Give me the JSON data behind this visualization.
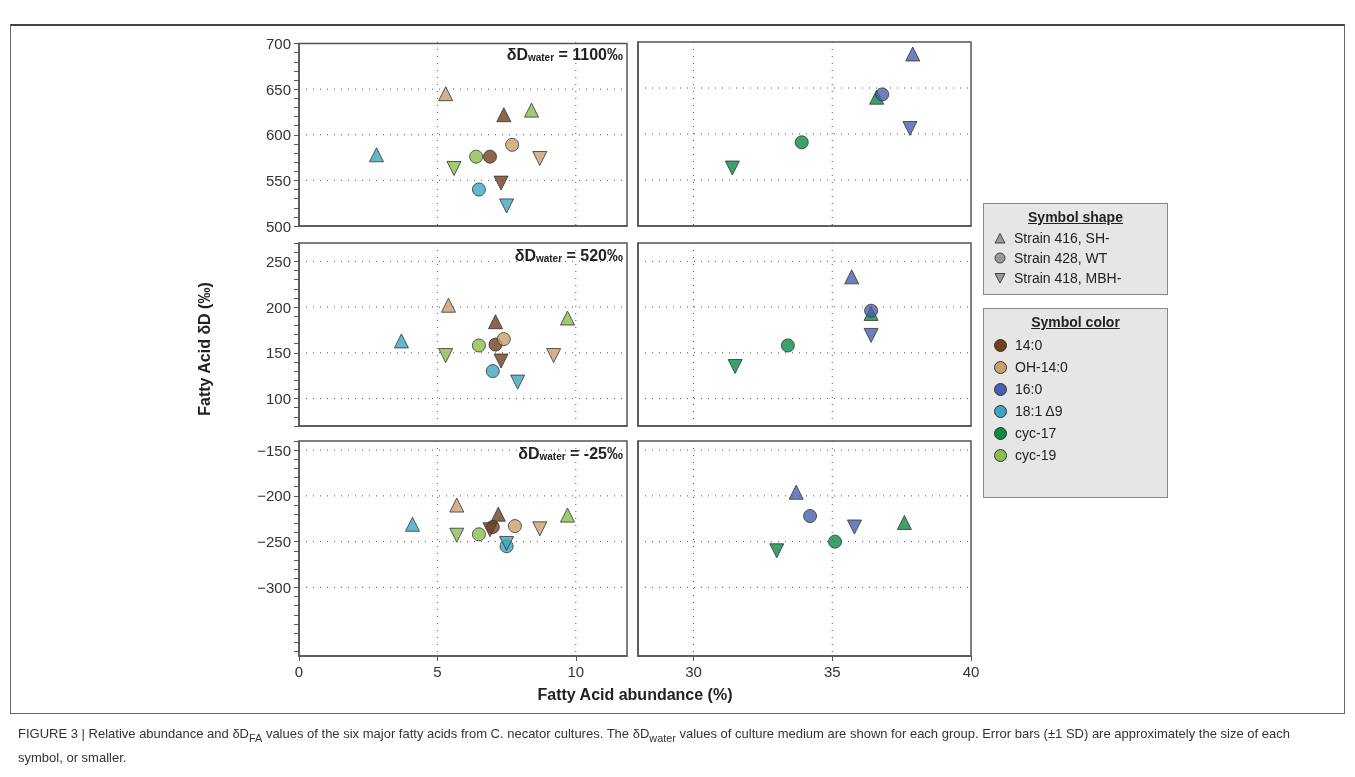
{
  "chart_data": [
    {
      "type": "scatter",
      "xlim": [
        0,
        11.85
      ],
      "xticks": [
        0,
        5,
        10
      ],
      "ylim": [
        500,
        700
      ],
      "yticks": [
        500,
        550,
        600,
        650,
        700
      ],
      "grid": true,
      "tick_labels": "y",
      "legend": false,
      "annotations": [
        "δD$_{water}$ = 1100‰"
      ],
      "series": [
        {
          "marker": "triangle",
          "x": [
            2.8,
            5.3,
            7.4,
            8.4
          ],
          "values": [
            578,
            645,
            622,
            627
          ],
          "colors": [
            "#3ea5bf",
            "#c9a06f",
            "#6e4121",
            "#8cbd50"
          ]
        },
        {
          "marker": "circle",
          "x": [
            6.4,
            6.9,
            6.5,
            7.7
          ],
          "values": [
            576,
            576,
            540,
            589
          ],
          "colors": [
            "#8cbd50",
            "#6e4121",
            "#3ea5bf",
            "#c9a06f"
          ]
        },
        {
          "marker": "triangle-down",
          "x": [
            5.6,
            7.3,
            7.5,
            8.7
          ],
          "values": [
            563,
            547,
            522,
            574
          ],
          "colors": [
            "#8cbd50",
            "#6e4121",
            "#3ea5bf",
            "#c9a06f"
          ]
        }
      ]
    },
    {
      "type": "scatter",
      "xlim": [
        28,
        40
      ],
      "xticks": [
        30,
        35,
        40
      ],
      "ylim": [
        500,
        700
      ],
      "yticks": [
        500,
        550,
        600,
        650,
        700
      ],
      "grid": true,
      "tick_labels": false,
      "legend": false,
      "series": [
        {
          "marker": "triangle",
          "x": [
            37.9,
            36.6
          ],
          "values": [
            687,
            640
          ],
          "colors": [
            "#4a5fad",
            "#0c8a46"
          ]
        },
        {
          "marker": "circle",
          "x": [
            36.8,
            33.9
          ],
          "values": [
            643,
            591
          ],
          "colors": [
            "#4a5fad",
            "#0c8a46"
          ]
        },
        {
          "marker": "triangle-down",
          "x": [
            37.8,
            31.4
          ],
          "values": [
            606,
            563
          ],
          "colors": [
            "#4a5fad",
            "#0c8a46"
          ]
        }
      ]
    },
    {
      "type": "scatter",
      "xlim": [
        0,
        11.85
      ],
      "xticks": [
        0,
        5,
        10
      ],
      "ylim": [
        70,
        270
      ],
      "yticks": [
        100,
        150,
        200,
        250
      ],
      "grid": true,
      "tick_labels": "y",
      "legend": false,
      "ylabel": "Fatty Acid δD (‰)",
      "annotations": [
        "δD$_{water}$ = 520‰"
      ],
      "series": [
        {
          "marker": "triangle",
          "x": [
            5.4,
            3.7,
            7.1,
            9.7
          ],
          "values": [
            202,
            163,
            184,
            188
          ],
          "colors": [
            "#c9a06f",
            "#3ea5bf",
            "#6e4121",
            "#8cbd50"
          ]
        },
        {
          "marker": "circle",
          "x": [
            6.5,
            7.1,
            7.4,
            7.0
          ],
          "values": [
            158,
            159,
            165,
            130
          ],
          "colors": [
            "#8cbd50",
            "#6e4121",
            "#c9a06f",
            "#3ea5bf"
          ]
        },
        {
          "marker": "triangle-down",
          "x": [
            5.3,
            7.3,
            7.9,
            9.2
          ],
          "values": [
            147,
            141,
            118,
            147
          ],
          "colors": [
            "#8cbd50",
            "#6e4121",
            "#3ea5bf",
            "#c9a06f"
          ]
        }
      ]
    },
    {
      "type": "scatter",
      "xlim": [
        28,
        40
      ],
      "xticks": [
        30,
        35,
        40
      ],
      "ylim": [
        70,
        270
      ],
      "yticks": [
        100,
        150,
        200,
        250
      ],
      "grid": true,
      "tick_labels": false,
      "legend": "right",
      "legend_title": "Symbol shape",
      "series": [
        {
          "name": "Strain 416, SH-",
          "marker": "triangle",
          "x": [
            35.7,
            36.4
          ],
          "values": [
            233,
            193
          ],
          "colors": [
            "#4a5fad",
            "#0c8a46"
          ]
        },
        {
          "name": "Strain 428, WT",
          "marker": "circle",
          "x": [
            36.4,
            33.4
          ],
          "values": [
            196,
            158
          ],
          "colors": [
            "#4a5fad",
            "#0c8a46"
          ]
        },
        {
          "name": "Strain 418, MBH-",
          "marker": "triangle-down",
          "x": [
            36.4,
            31.5
          ],
          "values": [
            169,
            135
          ],
          "colors": [
            "#4a5fad",
            "#0c8a46"
          ]
        }
      ]
    },
    {
      "type": "scatter",
      "xlim": [
        0,
        11.85
      ],
      "xticks": [
        0,
        5,
        10
      ],
      "ylim": [
        -375,
        -140
      ],
      "yticks": [
        -300,
        -250,
        -200,
        -150
      ],
      "grid": true,
      "legend": false,
      "xlabel": "Fatty Acid abundance (%)",
      "annotations": [
        "δD$_{water}$ = -25‰",
        "FIGURE 3 | Relative abundance and δD$_{FA}$ values of the six major fatty acids from C. necator cultures. The δD$_{water}$ values of culture medium are shown for each group. Error bars (±1 SD) are approximately the size of each symbol, or smaller."
      ],
      "series": [
        {
          "marker": "triangle",
          "x": [
            4.1,
            5.7,
            7.2,
            9.7
          ],
          "values": [
            -231,
            -210,
            -220,
            -221
          ],
          "colors": [
            "#3ea5bf",
            "#c9a06f",
            "#6e4121",
            "#8cbd50"
          ]
        },
        {
          "marker": "circle",
          "x": [
            7.0,
            7.8,
            6.5,
            7.5
          ],
          "values": [
            -234,
            -233,
            -242,
            -255
          ],
          "colors": [
            "#6e4121",
            "#c9a06f",
            "#8cbd50",
            "#3ea5bf"
          ]
        },
        {
          "marker": "triangle-down",
          "x": [
            5.7,
            6.9,
            7.5,
            8.7
          ],
          "values": [
            -243,
            -237,
            -252,
            -236
          ],
          "colors": [
            "#8cbd50",
            "#6e4121",
            "#3ea5bf",
            "#c9a06f"
          ]
        }
      ]
    },
    {
      "type": "scatter",
      "xlim": [
        28,
        40
      ],
      "xticks": [
        30,
        35,
        40
      ],
      "ylim": [
        -375,
        -140
      ],
      "yticks": [
        -300,
        -250,
        -200,
        -150
      ],
      "grid": true,
      "tick_labels": "x",
      "legend": false,
      "series": [
        {
          "marker": "triangle",
          "x": [
            33.7,
            37.6
          ],
          "values": [
            -196,
            -229
          ],
          "colors": [
            "#4a5fad",
            "#0c8a46"
          ]
        },
        {
          "marker": "circle",
          "x": [
            34.2,
            35.1
          ],
          "values": [
            -222,
            -250
          ],
          "colors": [
            "#4a5fad",
            "#0c8a46"
          ]
        },
        {
          "marker": "triangle-down",
          "x": [
            35.8,
            33.0
          ],
          "values": [
            -234,
            -260
          ],
          "colors": [
            "#4a5fad",
            "#0c8a46"
          ]
        }
      ]
    },
    {
      "type": "other",
      "title": "Symbol color",
      "categories": [
        "14:0",
        "OH-14:0",
        "16:0",
        "18:1 Δ9",
        "cyc-17",
        "cyc-19"
      ],
      "colors": [
        "#6e4121",
        "#c9a06f",
        "#4a5fad",
        "#3ea5bf",
        "#0c8a46",
        "#8cbd50"
      ]
    }
  ]
}
